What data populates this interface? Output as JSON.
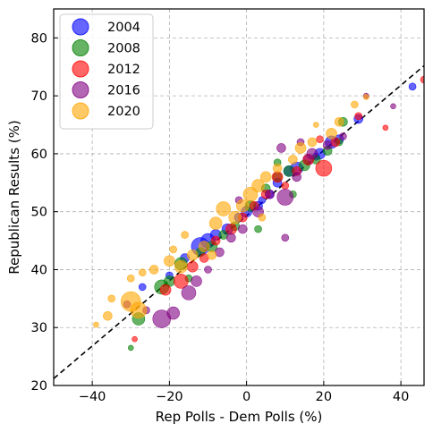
{
  "chart_data": {
    "type": "scatter",
    "xlabel": "Rep Polls - Dem Polls (%)",
    "ylabel": "Republican Results (%)",
    "xlim": [
      -50,
      46
    ],
    "ylim": [
      20,
      85
    ],
    "x_ticks": [
      -40,
      -20,
      0,
      20,
      40
    ],
    "y_ticks": [
      20,
      30,
      40,
      50,
      60,
      70,
      80
    ],
    "grid": true,
    "legend_position": "top-left",
    "reference_line": {
      "style": "dashed",
      "color": "#000000",
      "points": [
        [
          -50,
          21.2
        ],
        [
          46,
          75.2
        ]
      ]
    },
    "series": [
      {
        "name": "2004",
        "color": "#0000ff",
        "points": [
          [
            -12,
            44,
            10
          ],
          [
            -10,
            45,
            8
          ],
          [
            -8,
            46,
            6
          ],
          [
            -5,
            47,
            6
          ],
          [
            -2,
            49,
            5
          ],
          [
            0,
            50,
            6
          ],
          [
            3,
            51,
            5
          ],
          [
            6,
            53,
            5
          ],
          [
            8,
            55,
            5
          ],
          [
            11,
            57,
            6
          ],
          [
            13,
            57.5,
            7
          ],
          [
            16,
            59,
            6
          ],
          [
            19,
            60,
            6
          ],
          [
            22,
            62,
            7
          ],
          [
            24,
            62.5,
            5
          ],
          [
            29,
            66,
            5
          ],
          [
            43,
            71.6,
            4
          ],
          [
            -27,
            37,
            4
          ],
          [
            -20,
            39,
            4
          ],
          [
            -16,
            42,
            5
          ],
          [
            4,
            52,
            4
          ],
          [
            18,
            59.5,
            4
          ]
        ]
      },
      {
        "name": "2008",
        "color": "#008000",
        "points": [
          [
            -30,
            26.5,
            3
          ],
          [
            -28,
            31.5,
            7
          ],
          [
            -22,
            37,
            8
          ],
          [
            -20,
            38,
            6
          ],
          [
            -17,
            41,
            7
          ],
          [
            -12,
            43,
            5
          ],
          [
            -9,
            44,
            6
          ],
          [
            -6,
            46,
            5
          ],
          [
            -3,
            47.5,
            5
          ],
          [
            1,
            51,
            6
          ],
          [
            5,
            54,
            5
          ],
          [
            8,
            56,
            5
          ],
          [
            11,
            57,
            6
          ],
          [
            15,
            58,
            6
          ],
          [
            18,
            59,
            5
          ],
          [
            21,
            60.5,
            5
          ],
          [
            24,
            62,
            4
          ],
          [
            25,
            65.5,
            5
          ],
          [
            8,
            58.5,
            4
          ],
          [
            12,
            53,
            4
          ],
          [
            3,
            47,
            4
          ],
          [
            -15,
            38.5,
            4
          ]
        ]
      },
      {
        "name": "2012",
        "color": "#ff0000",
        "points": [
          [
            -29,
            28,
            3
          ],
          [
            -21,
            36.5,
            6
          ],
          [
            -17,
            38,
            8
          ],
          [
            -14,
            40.5,
            6
          ],
          [
            -11,
            42,
            5
          ],
          [
            -8,
            45,
            5
          ],
          [
            -4,
            47,
            6
          ],
          [
            -1,
            49,
            5
          ],
          [
            2,
            51,
            5
          ],
          [
            5,
            53,
            5
          ],
          [
            8,
            56,
            6
          ],
          [
            13,
            57,
            5
          ],
          [
            16,
            59,
            6
          ],
          [
            20,
            57.5,
            9
          ],
          [
            23,
            62,
            5
          ],
          [
            29,
            66.5,
            4
          ],
          [
            36,
            64.5,
            3
          ],
          [
            46,
            72.8,
            4
          ],
          [
            19,
            62.5,
            4
          ],
          [
            10,
            54.5,
            4
          ]
        ]
      },
      {
        "name": "2016",
        "color": "#800080",
        "points": [
          [
            -22,
            31.5,
            10
          ],
          [
            -19,
            32.5,
            7
          ],
          [
            -15,
            36,
            8
          ],
          [
            -13,
            38,
            6
          ],
          [
            -10,
            40,
            4
          ],
          [
            -7,
            43,
            5
          ],
          [
            -4,
            45.5,
            5
          ],
          [
            -1,
            47,
            5
          ],
          [
            3,
            50,
            6
          ],
          [
            6,
            53,
            5
          ],
          [
            10,
            52.5,
            9
          ],
          [
            10,
            45.5,
            4
          ],
          [
            13,
            56,
            5
          ],
          [
            17,
            60,
            6
          ],
          [
            21,
            61.5,
            5
          ],
          [
            25,
            63,
            4
          ],
          [
            38,
            68.2,
            3
          ],
          [
            31,
            70,
            3
          ],
          [
            -31,
            34,
            4
          ],
          [
            -26,
            33,
            4
          ],
          [
            14,
            62,
            4
          ],
          [
            -2,
            52,
            4
          ],
          [
            9,
            61,
            5
          ]
        ]
      },
      {
        "name": "2020",
        "color": "#ffa500",
        "points": [
          [
            -39,
            30.5,
            3
          ],
          [
            -36,
            32,
            5
          ],
          [
            -30,
            34.5,
            11
          ],
          [
            -28,
            33,
            9
          ],
          [
            -30,
            38.5,
            4
          ],
          [
            -27,
            39.5,
            4
          ],
          [
            -24,
            40,
            5
          ],
          [
            -20,
            41.5,
            6
          ],
          [
            -17,
            40.5,
            7
          ],
          [
            -14,
            42.5,
            6
          ],
          [
            -11,
            44,
            6
          ],
          [
            -8,
            48,
            7
          ],
          [
            -6,
            50.5,
            8
          ],
          [
            -3,
            49,
            7
          ],
          [
            -1,
            51,
            7
          ],
          [
            1,
            53,
            8
          ],
          [
            3,
            54.5,
            7
          ],
          [
            5,
            56,
            6
          ],
          [
            8,
            57.5,
            5
          ],
          [
            12,
            59,
            5
          ],
          [
            14,
            61,
            6
          ],
          [
            17,
            62,
            5
          ],
          [
            22,
            63.5,
            6
          ],
          [
            24,
            65.5,
            5
          ],
          [
            28,
            68.5,
            4
          ],
          [
            31,
            69.8,
            3
          ],
          [
            18,
            65,
            3
          ],
          [
            -9,
            42.5,
            5
          ],
          [
            -19,
            43.5,
            4
          ],
          [
            -16,
            46,
            4
          ],
          [
            4,
            49,
            4
          ],
          [
            -35,
            35,
            4
          ]
        ]
      }
    ]
  }
}
